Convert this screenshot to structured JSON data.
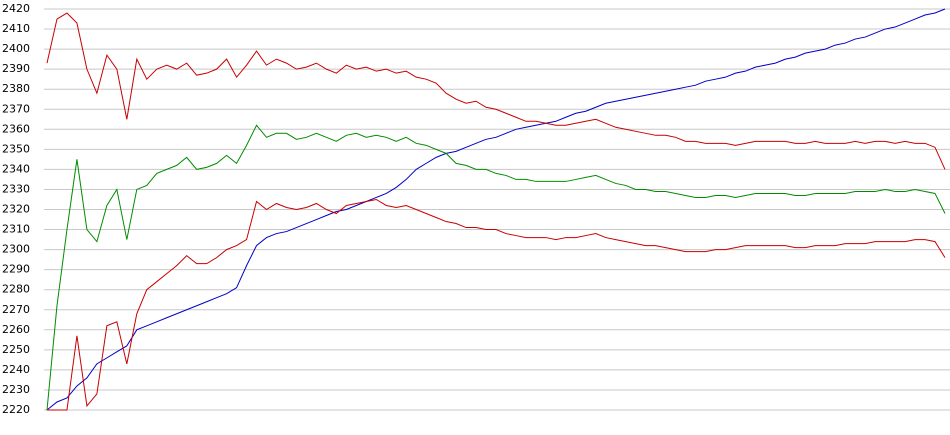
{
  "chart_data": {
    "type": "line",
    "ylim": [
      2220,
      2420
    ],
    "yticks": [
      2220,
      2230,
      2240,
      2250,
      2260,
      2270,
      2280,
      2290,
      2300,
      2310,
      2320,
      2330,
      2340,
      2350,
      2360,
      2370,
      2380,
      2390,
      2400,
      2410,
      2420
    ],
    "grid": true,
    "series": [
      {
        "color": "#0000c8",
        "values": [
          2220,
          2224,
          2226,
          2232,
          2236,
          2243,
          2246,
          2249,
          2252,
          2260,
          2262,
          2264,
          2266,
          2268,
          2270,
          2272,
          2274,
          2276,
          2278,
          2281,
          2292,
          2302,
          2306,
          2308,
          2309,
          2311,
          2313,
          2315,
          2317,
          2319,
          2320,
          2322,
          2324,
          2326,
          2328,
          2331,
          2335,
          2340,
          2343,
          2346,
          2348,
          2349,
          2351,
          2353,
          2355,
          2356,
          2358,
          2360,
          2361,
          2362,
          2363,
          2364,
          2366,
          2368,
          2369,
          2371,
          2373,
          2374,
          2375,
          2376,
          2377,
          2378,
          2379,
          2380,
          2381,
          2382,
          2384,
          2385,
          2386,
          2388,
          2389,
          2391,
          2392,
          2393,
          2395,
          2396,
          2398,
          2399,
          2400,
          2402,
          2403,
          2405,
          2406,
          2408,
          2410,
          2411,
          2413,
          2415,
          2417,
          2418,
          2420
        ]
      },
      {
        "color": "#c80000",
        "values": [
          2393,
          2415,
          2418,
          2413,
          2390,
          2378,
          2397,
          2390,
          2365,
          2395,
          2385,
          2390,
          2392,
          2390,
          2393,
          2387,
          2388,
          2390,
          2395,
          2386,
          2392,
          2399,
          2392,
          2395,
          2393,
          2390,
          2391,
          2393,
          2390,
          2388,
          2392,
          2390,
          2391,
          2389,
          2390,
          2388,
          2389,
          2386,
          2385,
          2383,
          2378,
          2375,
          2373,
          2374,
          2371,
          2370,
          2368,
          2366,
          2364,
          2364,
          2363,
          2362,
          2362,
          2363,
          2364,
          2365,
          2363,
          2361,
          2360,
          2359,
          2358,
          2357,
          2357,
          2356,
          2354,
          2354,
          2353,
          2353,
          2353,
          2352,
          2353,
          2354,
          2354,
          2354,
          2354,
          2353,
          2353,
          2354,
          2353,
          2353,
          2353,
          2354,
          2353,
          2354,
          2354,
          2353,
          2354,
          2353,
          2353,
          2351,
          2340
        ]
      },
      {
        "color": "#008c00",
        "values": [
          2220,
          2272,
          2310,
          2345,
          2310,
          2304,
          2322,
          2330,
          2305,
          2330,
          2332,
          2338,
          2340,
          2342,
          2346,
          2340,
          2341,
          2343,
          2347,
          2343,
          2352,
          2362,
          2356,
          2358,
          2358,
          2355,
          2356,
          2358,
          2356,
          2354,
          2357,
          2358,
          2356,
          2357,
          2356,
          2354,
          2356,
          2353,
          2352,
          2350,
          2348,
          2343,
          2342,
          2340,
          2340,
          2338,
          2337,
          2335,
          2335,
          2334,
          2334,
          2334,
          2334,
          2335,
          2336,
          2337,
          2335,
          2333,
          2332,
          2330,
          2330,
          2329,
          2329,
          2328,
          2327,
          2326,
          2326,
          2327,
          2327,
          2326,
          2327,
          2328,
          2328,
          2328,
          2328,
          2327,
          2327,
          2328,
          2328,
          2328,
          2328,
          2329,
          2329,
          2329,
          2330,
          2329,
          2329,
          2330,
          2329,
          2328,
          2318
        ]
      },
      {
        "color": "#c80000",
        "values": [
          2220,
          2220,
          2220,
          2257,
          2222,
          2228,
          2262,
          2264,
          2243,
          2268,
          2280,
          2284,
          2288,
          2292,
          2297,
          2293,
          2293,
          2296,
          2300,
          2302,
          2305,
          2324,
          2320,
          2323,
          2321,
          2320,
          2321,
          2323,
          2320,
          2318,
          2322,
          2323,
          2324,
          2325,
          2322,
          2321,
          2322,
          2320,
          2318,
          2316,
          2314,
          2313,
          2311,
          2311,
          2310,
          2310,
          2308,
          2307,
          2306,
          2306,
          2306,
          2305,
          2306,
          2306,
          2307,
          2308,
          2306,
          2305,
          2304,
          2303,
          2302,
          2302,
          2301,
          2300,
          2299,
          2299,
          2299,
          2300,
          2300,
          2301,
          2302,
          2302,
          2302,
          2302,
          2302,
          2301,
          2301,
          2302,
          2302,
          2302,
          2303,
          2303,
          2303,
          2304,
          2304,
          2304,
          2304,
          2305,
          2305,
          2304,
          2296
        ]
      }
    ]
  }
}
